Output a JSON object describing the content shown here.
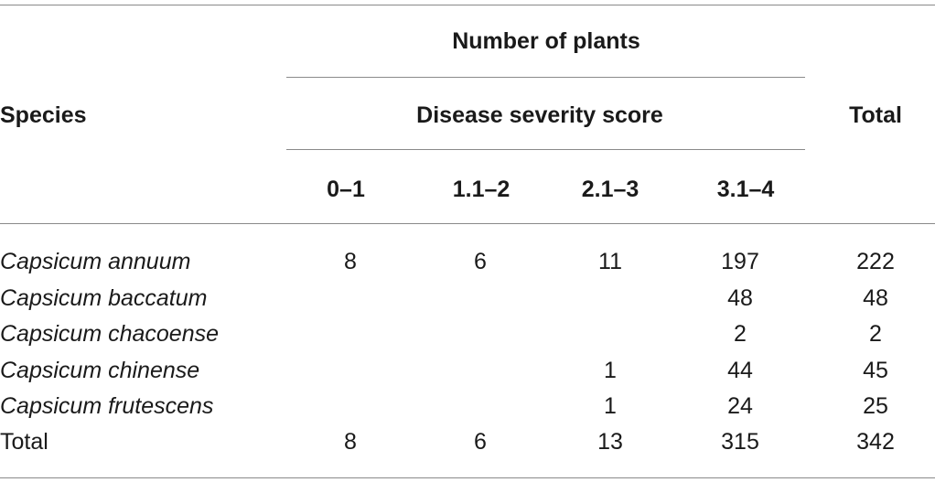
{
  "table": {
    "header": {
      "group_label": "Number of plants",
      "subgroup_label": "Disease severity score",
      "species_label": "Species",
      "total_label": "Total",
      "score_columns": [
        "0–1",
        "1.1–2",
        "2.1–3",
        "3.1–4"
      ]
    },
    "rows": [
      {
        "species": "Capsicum annuum",
        "s0_1": "8",
        "s1_2": "6",
        "s2_3": "11",
        "s3_4": "197",
        "total": "222"
      },
      {
        "species": "Capsicum baccatum",
        "s0_1": "",
        "s1_2": "",
        "s2_3": "",
        "s3_4": "48",
        "total": "48"
      },
      {
        "species": "Capsicum chacoense",
        "s0_1": "",
        "s1_2": "",
        "s2_3": "",
        "s3_4": "2",
        "total": "2"
      },
      {
        "species": "Capsicum chinense",
        "s0_1": "",
        "s1_2": "",
        "s2_3": "1",
        "s3_4": "44",
        "total": "45"
      },
      {
        "species": "Capsicum frutescens",
        "s0_1": "",
        "s1_2": "",
        "s2_3": "1",
        "s3_4": "24",
        "total": "25"
      }
    ],
    "total_row": {
      "label": "Total",
      "s0_1": "8",
      "s1_2": "6",
      "s2_3": "13",
      "s3_4": "315",
      "total": "342"
    }
  }
}
